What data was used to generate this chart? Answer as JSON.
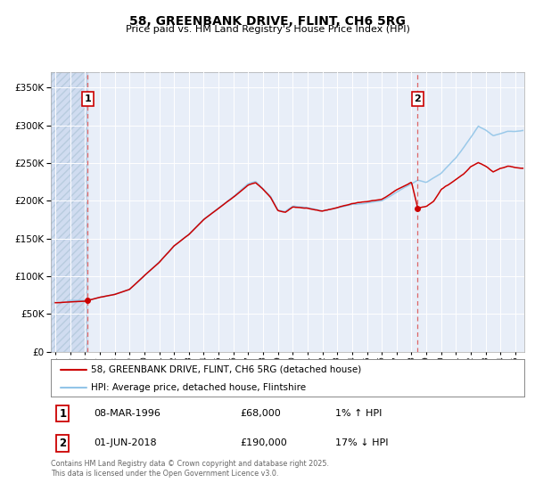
{
  "title": "58, GREENBANK DRIVE, FLINT, CH6 5RG",
  "subtitle": "Price paid vs. HM Land Registry's House Price Index (HPI)",
  "legend_line1": "58, GREENBANK DRIVE, FLINT, CH6 5RG (detached house)",
  "legend_line2": "HPI: Average price, detached house, Flintshire",
  "footnote": "Contains HM Land Registry data © Crown copyright and database right 2025.\nThis data is licensed under the Open Government Licence v3.0.",
  "annotation1_label": "1",
  "annotation1_date": "08-MAR-1996",
  "annotation1_price": "£68,000",
  "annotation1_hpi": "1% ↑ HPI",
  "annotation1_value": 68000,
  "annotation1_year": 1996.19,
  "annotation2_label": "2",
  "annotation2_date": "01-JUN-2018",
  "annotation2_price": "£190,000",
  "annotation2_hpi": "17% ↓ HPI",
  "annotation2_value": 190000,
  "annotation2_year": 2018.42,
  "hpi_color": "#92C5E8",
  "price_color": "#CC0000",
  "vline_color": "#DD6666",
  "bg_color": "#E8EEF8",
  "hatch_bg": "#D0DCF0",
  "ylim": [
    0,
    370000
  ],
  "yticks": [
    0,
    50000,
    100000,
    150000,
    200000,
    250000,
    300000,
    350000
  ],
  "xlim_start": 1993.7,
  "xlim_end": 2025.6,
  "xticks": [
    1994,
    1995,
    1996,
    1997,
    1998,
    1999,
    2000,
    2001,
    2002,
    2003,
    2004,
    2005,
    2006,
    2007,
    2008,
    2009,
    2010,
    2011,
    2012,
    2013,
    2014,
    2015,
    2016,
    2017,
    2018,
    2019,
    2020,
    2021,
    2022,
    2023,
    2024,
    2025
  ]
}
